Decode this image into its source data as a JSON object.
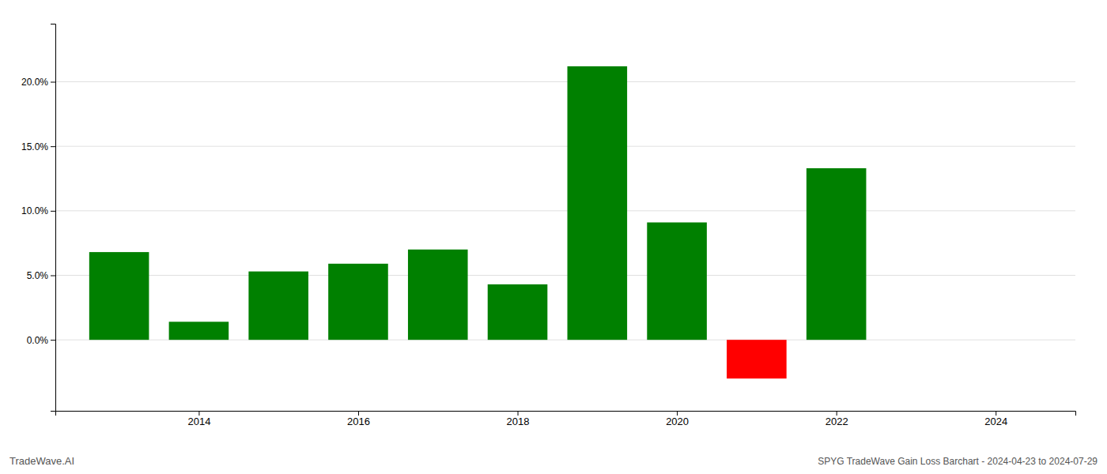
{
  "chart_data": {
    "type": "bar",
    "x": [
      2013,
      2014,
      2015,
      2016,
      2017,
      2018,
      2019,
      2020,
      2021,
      2022
    ],
    "values": [
      0.068,
      0.014,
      0.053,
      0.059,
      0.07,
      0.043,
      0.212,
      0.091,
      -0.03,
      0.133
    ],
    "colors": [
      "#008000",
      "#008000",
      "#008000",
      "#008000",
      "#008000",
      "#008000",
      "#008000",
      "#008000",
      "#ff0000",
      "#008000"
    ],
    "xlim": [
      2012.2,
      2025.0
    ],
    "xticks": [
      2014,
      2016,
      2018,
      2020,
      2022,
      2024
    ],
    "ylim": [
      -0.055,
      0.245
    ],
    "yticks": [
      {
        "value": 0.0,
        "label": "0.0%"
      },
      {
        "value": 0.05,
        "label": "5.0%"
      },
      {
        "value": 0.1,
        "label": "10.0%"
      },
      {
        "value": 0.15,
        "label": "15.0%"
      },
      {
        "value": 0.2,
        "label": "20.0%"
      }
    ],
    "grid": true,
    "annotations": [
      "TradeWave.AI",
      "SPYG TradeWave Gain Loss Barchart - 2024-04-23 to 2024-07-29"
    ]
  }
}
